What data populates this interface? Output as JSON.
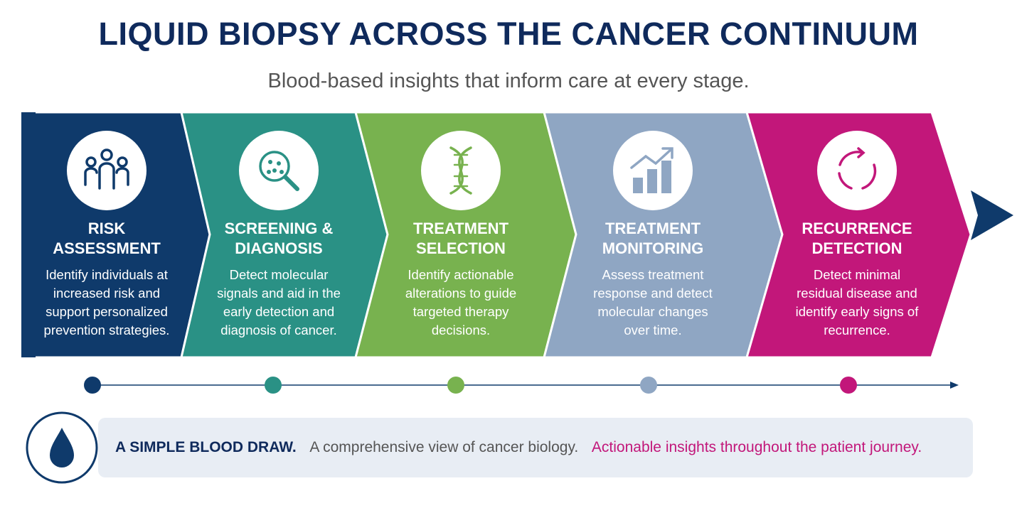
{
  "header": {
    "title": "LIQUID BIOPSY ACROSS THE CANCER CONTINUUM",
    "subtitle": "Blood-based insights that inform care at every stage."
  },
  "stages": [
    {
      "title": "RISK ASSESSMENT",
      "description": "Identify individuals at increased risk and support personalized prevention strategies."
    },
    {
      "title": "SCREENING & DIAGNOSIS",
      "description": "Detect molecular signals and aid in the early detection and diagnosis of cancer."
    },
    {
      "title": "TREATMENT SELECTION",
      "description": "Identify actionable alterations to guide targeted therapy decisions."
    },
    {
      "title": "TREATMENT MONITORING",
      "description": "Assess treatment response and detect molecular changes over time."
    },
    {
      "title": "RECURRENCE DETECTION",
      "description": "Detect minimal residual disease and identify early signs of recurrence."
    }
  ],
  "footer": {
    "lead": "A SIMPLE BLOOD DRAW.",
    "middle": "A comprehensive view of cancer biology.",
    "end": "Actionable insights throughout the patient journey."
  }
}
